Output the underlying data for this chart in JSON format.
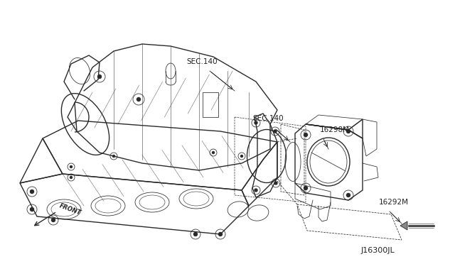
{
  "background_color": "#ffffff",
  "line_color": "#2a2a2a",
  "text_color": "#222222",
  "lw_main": 1.0,
  "lw_thin": 0.55,
  "lw_dash": 0.6,
  "figsize": [
    6.4,
    3.72
  ],
  "dpi": 100,
  "labels": {
    "sec140_1": "SEC.140",
    "sec140_2": "SEC.140",
    "part1": "16298M",
    "part2": "16292M",
    "front": "FRONT",
    "diagram_id": "J16300JL"
  }
}
